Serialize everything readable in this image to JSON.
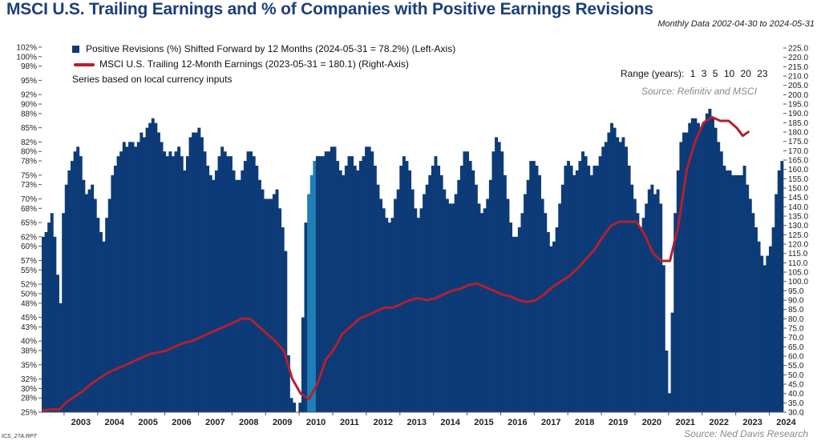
{
  "header": {
    "title": "MSCI U.S. Trailing Earnings and % of Companies with Positive Earnings Revisions",
    "subtitle": "Monthly Data 2002-04-30 to 2024-05-31"
  },
  "legend": {
    "bars_label": "Positive Revisions (%)  Shifted Forward by 12 Months (2024-05-31 = 78.2%) (Left-Axis)",
    "line_label": "MSCI U.S.  Trailing 12-Month Earnings (2023-05-31 = 180.1) (Right-Axis)",
    "note": "Series based on local currency inputs"
  },
  "range_selector": {
    "label": "Range (years):",
    "options": [
      "1",
      "3",
      "5",
      "10",
      "20",
      "23"
    ]
  },
  "sources": {
    "top": "Source: Refinitiv and MSCI",
    "bottom": "Source: Ned Davis Research"
  },
  "report_id": "ICS_27A.RPT",
  "colors": {
    "bars": "#0d3b78",
    "bars_highlight": "#1f7fb5",
    "line": "#b2202f"
  },
  "chart_data": {
    "type": "bar",
    "x_range": [
      "2002-04-30",
      "2024-05-31"
    ],
    "x_ticks": [
      "2003",
      "2004",
      "2005",
      "2006",
      "2007",
      "2008",
      "2009",
      "2010",
      "2011",
      "2012",
      "2013",
      "2014",
      "2015",
      "2016",
      "2017",
      "2018",
      "2019",
      "2020",
      "2021",
      "2022",
      "2023",
      "2024"
    ],
    "y_left": {
      "ylim": [
        25,
        103
      ],
      "ticks": [
        "25%",
        "28%",
        "30%",
        "32%",
        "35%",
        "38%",
        "40%",
        "43%",
        "45%",
        "48%",
        "50%",
        "52%",
        "55%",
        "57%",
        "60%",
        "62%",
        "65%",
        "68%",
        "70%",
        "73%",
        "75%",
        "78%",
        "80%",
        "82%",
        "85%",
        "88%",
        "90%",
        "92%",
        "95%",
        "98%",
        "100%",
        "102%"
      ]
    },
    "y_right": {
      "ylim": [
        30,
        228
      ],
      "ticks": [
        "30.0",
        "35.0",
        "40.0",
        "45.0",
        "50.0",
        "55.0",
        "60.0",
        "65.0",
        "70.0",
        "75.0",
        "80.0",
        "85.0",
        "90.0",
        "95.0",
        "100.0",
        "105.0",
        "110.0",
        "115.0",
        "120.0",
        "125.0",
        "130.0",
        "135.0",
        "140.0",
        "145.0",
        "150.0",
        "155.0",
        "160.0",
        "165.0",
        "170.0",
        "175.0",
        "180.0",
        "185.0",
        "190.0",
        "195.0",
        "200.0",
        "205.0",
        "210.0",
        "215.0",
        "220.0",
        "225.0"
      ]
    },
    "series": [
      {
        "name": "Positive Revisions (%)  Shifted Forward by 12 Months",
        "type": "bar",
        "axis": "left",
        "start": "2002-05",
        "end": "2024-05",
        "values": [
          62,
          63,
          65,
          67,
          62,
          54,
          48,
          67,
          73,
          76,
          78,
          80,
          81,
          79,
          74,
          71,
          72,
          73,
          70,
          66,
          63,
          61,
          66,
          70,
          75,
          77,
          79,
          80,
          82,
          81,
          82,
          82,
          81,
          82,
          84,
          83,
          85,
          86,
          87,
          86,
          84,
          82,
          80,
          79,
          80,
          79,
          80,
          81,
          79,
          76,
          79,
          83,
          84,
          84,
          85,
          83,
          80,
          77,
          75,
          74,
          76,
          79,
          81,
          80,
          79,
          79,
          76,
          74,
          74,
          76,
          78,
          80,
          80,
          79,
          77,
          74,
          72,
          70,
          70,
          70,
          71,
          72,
          68,
          64,
          59,
          37,
          28,
          27,
          25,
          27,
          45,
          65,
          71,
          75,
          78,
          79,
          79,
          79,
          80,
          80,
          81,
          81,
          78,
          76,
          75,
          77,
          79,
          79,
          77,
          76,
          78,
          79,
          81,
          81,
          80,
          77,
          73,
          70,
          68,
          66,
          65,
          66,
          70,
          72,
          77,
          79,
          78,
          76,
          72,
          68,
          66,
          68,
          71,
          73,
          75,
          77,
          79,
          77,
          75,
          72,
          70,
          69,
          69,
          71,
          74,
          77,
          80,
          80,
          78,
          76,
          73,
          69,
          67,
          68,
          70,
          74,
          80,
          83,
          82,
          80,
          75,
          70,
          65,
          62,
          62,
          64,
          67,
          71,
          74,
          78,
          78,
          77,
          75,
          70,
          67,
          63,
          60,
          61,
          64,
          69,
          73,
          77,
          78,
          77,
          75,
          76,
          78,
          80,
          79,
          77,
          75,
          77,
          77,
          79,
          81,
          82,
          84,
          86,
          85,
          83,
          82,
          83,
          81,
          77,
          73,
          70,
          67,
          64,
          66,
          69,
          72,
          73,
          71,
          72,
          69,
          56,
          38,
          29,
          46,
          67,
          76,
          82,
          84,
          84,
          86,
          87,
          87,
          86,
          85,
          86,
          88,
          89,
          87,
          85,
          82,
          80,
          77,
          76,
          76,
          75,
          75,
          75,
          75,
          77,
          73,
          70,
          67,
          64,
          61,
          58,
          56,
          58,
          60,
          64,
          71,
          76,
          78
        ]
      },
      {
        "name": "MSCI U.S.  Trailing 12-Month Earnings",
        "type": "line",
        "axis": "right",
        "points": [
          [
            "2002-05",
            31
          ],
          [
            "2002-08",
            31.5
          ],
          [
            "2002-11",
            31.5
          ],
          [
            "2003-01",
            35
          ],
          [
            "2003-04",
            38
          ],
          [
            "2003-07",
            41
          ],
          [
            "2003-10",
            45
          ],
          [
            "2004-01",
            48
          ],
          [
            "2004-04",
            51
          ],
          [
            "2004-07",
            53
          ],
          [
            "2004-10",
            55
          ],
          [
            "2005-01",
            57
          ],
          [
            "2005-04",
            59
          ],
          [
            "2005-07",
            61
          ],
          [
            "2005-10",
            62
          ],
          [
            "2006-01",
            63
          ],
          [
            "2006-04",
            65
          ],
          [
            "2006-07",
            67
          ],
          [
            "2006-10",
            68
          ],
          [
            "2007-01",
            70
          ],
          [
            "2007-04",
            72
          ],
          [
            "2007-07",
            74
          ],
          [
            "2007-10",
            76
          ],
          [
            "2008-01",
            78
          ],
          [
            "2008-04",
            80
          ],
          [
            "2008-07",
            80
          ],
          [
            "2008-10",
            76
          ],
          [
            "2009-01",
            72
          ],
          [
            "2009-04",
            68
          ],
          [
            "2009-07",
            63
          ],
          [
            "2009-10",
            48
          ],
          [
            "2010-01",
            40
          ],
          [
            "2010-04",
            37
          ],
          [
            "2010-07",
            45
          ],
          [
            "2010-10",
            58
          ],
          [
            "2011-01",
            64
          ],
          [
            "2011-04",
            72
          ],
          [
            "2011-07",
            76
          ],
          [
            "2011-10",
            80
          ],
          [
            "2012-01",
            82
          ],
          [
            "2012-04",
            84
          ],
          [
            "2012-07",
            86
          ],
          [
            "2012-10",
            86
          ],
          [
            "2013-01",
            88
          ],
          [
            "2013-04",
            90
          ],
          [
            "2013-07",
            91
          ],
          [
            "2013-10",
            90
          ],
          [
            "2014-01",
            91
          ],
          [
            "2014-04",
            93
          ],
          [
            "2014-07",
            95
          ],
          [
            "2014-10",
            96
          ],
          [
            "2015-01",
            98
          ],
          [
            "2015-04",
            99
          ],
          [
            "2015-07",
            97
          ],
          [
            "2015-10",
            95
          ],
          [
            "2016-01",
            93
          ],
          [
            "2016-04",
            92
          ],
          [
            "2016-07",
            90
          ],
          [
            "2016-10",
            89
          ],
          [
            "2017-01",
            90
          ],
          [
            "2017-04",
            93
          ],
          [
            "2017-07",
            97
          ],
          [
            "2017-10",
            100
          ],
          [
            "2018-01",
            103
          ],
          [
            "2018-04",
            107
          ],
          [
            "2018-07",
            112
          ],
          [
            "2018-10",
            117
          ],
          [
            "2019-01",
            124
          ],
          [
            "2019-04",
            130
          ],
          [
            "2019-07",
            132
          ],
          [
            "2019-10",
            132
          ],
          [
            "2020-01",
            132
          ],
          [
            "2020-04",
            125
          ],
          [
            "2020-07",
            115
          ],
          [
            "2020-10",
            111
          ],
          [
            "2021-01",
            111
          ],
          [
            "2021-04",
            130
          ],
          [
            "2021-07",
            160
          ],
          [
            "2021-10",
            175
          ],
          [
            "2022-01",
            185
          ],
          [
            "2022-04",
            188
          ],
          [
            "2022-07",
            186
          ],
          [
            "2022-10",
            186
          ],
          [
            "2023-01",
            182
          ],
          [
            "2023-03",
            178
          ],
          [
            "2023-05",
            180.1
          ]
        ]
      }
    ]
  }
}
